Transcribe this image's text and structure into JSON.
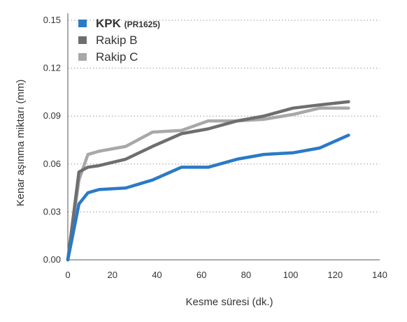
{
  "chart_data": {
    "type": "line",
    "title": "",
    "xlabel_main": "Kesme süresi",
    "xlabel_unit": "(dk.)",
    "ylabel_main": "Kenar aşınma miktarı",
    "ylabel_unit": "(mm)",
    "xlim": [
      0,
      140
    ],
    "ylim": [
      0,
      0.15
    ],
    "xticks": [
      "0",
      "20",
      "40",
      "60",
      "80",
      "100",
      "120",
      "140"
    ],
    "yticks": [
      "0.00",
      "0.03",
      "0.06",
      "0.09",
      "0.12",
      "0.15"
    ],
    "grid": "horizontal-dotted",
    "legend_position": "top-left",
    "series": [
      {
        "name": "KPK",
        "name_suffix": "(PR1625)",
        "color": "#2a7ac6",
        "points": [
          [
            0,
            0
          ],
          [
            5,
            0.035
          ],
          [
            9,
            0.042
          ],
          [
            14,
            0.044
          ],
          [
            26,
            0.045
          ],
          [
            38,
            0.05
          ],
          [
            51,
            0.058
          ],
          [
            63,
            0.058
          ],
          [
            76,
            0.063
          ],
          [
            88,
            0.066
          ],
          [
            101,
            0.067
          ],
          [
            113,
            0.07
          ],
          [
            126,
            0.078
          ]
        ]
      },
      {
        "name": "Rakip B",
        "color": "#6e6e70",
        "points": [
          [
            0,
            0
          ],
          [
            5,
            0.055
          ],
          [
            9,
            0.058
          ],
          [
            14,
            0.059
          ],
          [
            26,
            0.063
          ],
          [
            38,
            0.071
          ],
          [
            51,
            0.079
          ],
          [
            63,
            0.082
          ],
          [
            76,
            0.087
          ],
          [
            88,
            0.09
          ],
          [
            101,
            0.095
          ],
          [
            113,
            0.097
          ],
          [
            126,
            0.099
          ]
        ]
      },
      {
        "name": "Rakip C",
        "color": "#a7a8aa",
        "points": [
          [
            0,
            0
          ],
          [
            5,
            0.05
          ],
          [
            9,
            0.066
          ],
          [
            14,
            0.068
          ],
          [
            26,
            0.071
          ],
          [
            38,
            0.08
          ],
          [
            51,
            0.081
          ],
          [
            63,
            0.087
          ],
          [
            76,
            0.087
          ],
          [
            88,
            0.088
          ],
          [
            101,
            0.091
          ],
          [
            113,
            0.095
          ],
          [
            126,
            0.095
          ]
        ]
      }
    ]
  }
}
